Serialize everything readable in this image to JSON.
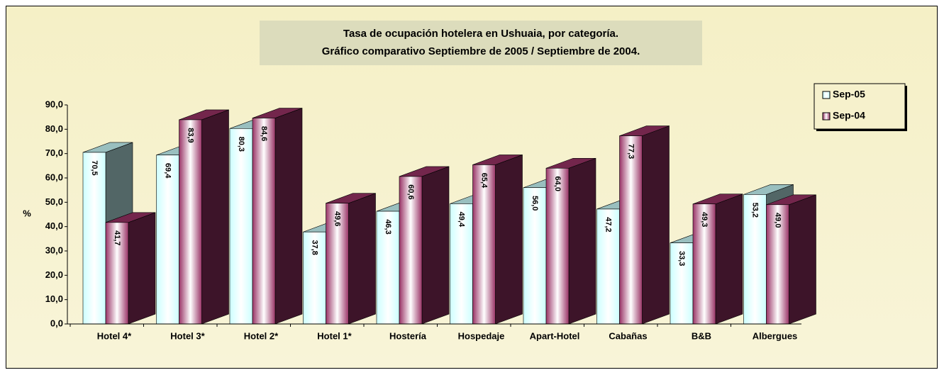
{
  "chart_data": {
    "type": "bar3d",
    "title": "Tasa de ocupación hotelera en Ushuaia, por categoría.",
    "subtitle": "Gráfico comparativo Septiembre de 2005 / Septiembre de 2004.",
    "y_label": "%",
    "categories": [
      "Hotel 4*",
      "Hotel 3*",
      "Hotel 2*",
      "Hotel 1*",
      "Hostería",
      "Hospedaje",
      "Apart-Hotel",
      "Cabañas",
      "B&B",
      "Albergues"
    ],
    "series": [
      {
        "name": "Sep-05",
        "color": "#ccffff",
        "values": [
          70.5,
          69.4,
          80.3,
          37.8,
          46.3,
          49.4,
          56.0,
          47.2,
          33.3,
          53.2
        ],
        "value_labels": [
          "70,5",
          "69,4",
          "80,3",
          "37,8",
          "46,3",
          "49,4",
          "56,0",
          "47,2",
          "33,3",
          "53,2"
        ]
      },
      {
        "name": "Sep-04",
        "color": "#993366",
        "values": [
          41.7,
          83.9,
          84.6,
          49.6,
          60.6,
          65.4,
          64.0,
          77.3,
          49.3,
          49.0
        ],
        "value_labels": [
          "41,7",
          "83,9",
          "84,6",
          "49,6",
          "60,6",
          "65,4",
          "64,0",
          "77,3",
          "49,3",
          "49,0"
        ]
      }
    ],
    "ylim": [
      0,
      90
    ],
    "yticks": [
      {
        "value": 0,
        "label": "0,0"
      },
      {
        "value": 10,
        "label": "10,0"
      },
      {
        "value": 20,
        "label": "20,0"
      },
      {
        "value": 30,
        "label": "30,0"
      },
      {
        "value": 40,
        "label": "40,0"
      },
      {
        "value": 50,
        "label": "50,0"
      },
      {
        "value": 60,
        "label": "60,0"
      },
      {
        "value": 70,
        "label": "70,0"
      },
      {
        "value": 80,
        "label": "80,0"
      },
      {
        "value": 90,
        "label": "90,0"
      }
    ],
    "legend": "upper right"
  }
}
